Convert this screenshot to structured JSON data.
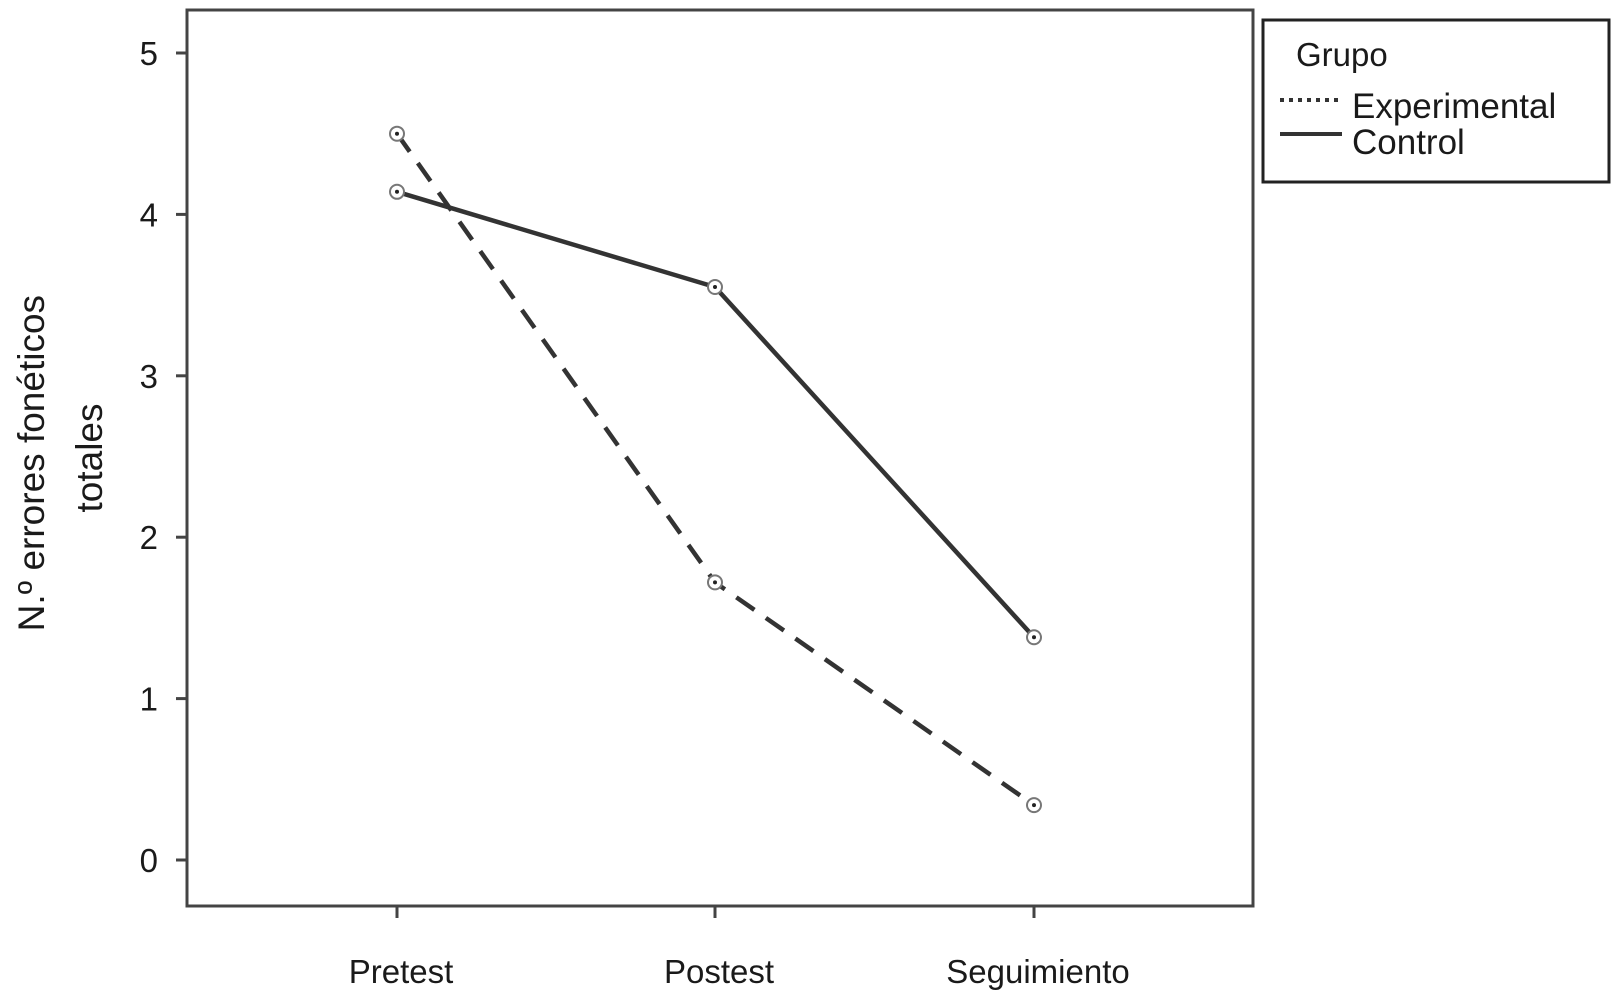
{
  "chart_data": {
    "type": "line",
    "categories": [
      "Pretest",
      "Postest",
      "Seguimiento"
    ],
    "series": [
      {
        "name": "Experimental",
        "values": [
          4.5,
          1.72,
          0.34
        ],
        "line_style": "dashed",
        "color": "#333333"
      },
      {
        "name": "Control",
        "values": [
          4.14,
          3.55,
          1.38
        ],
        "line_style": "solid",
        "color": "#333333"
      }
    ],
    "ylabel": [
      "N.º errores fonéticos",
      "totales"
    ],
    "xlabel": "",
    "ylim": [
      0,
      5
    ],
    "yticks": [
      0,
      1,
      2,
      3,
      4,
      5
    ],
    "grid": false,
    "legend": {
      "title": "Grupo",
      "placement": "top-right-outside"
    }
  }
}
